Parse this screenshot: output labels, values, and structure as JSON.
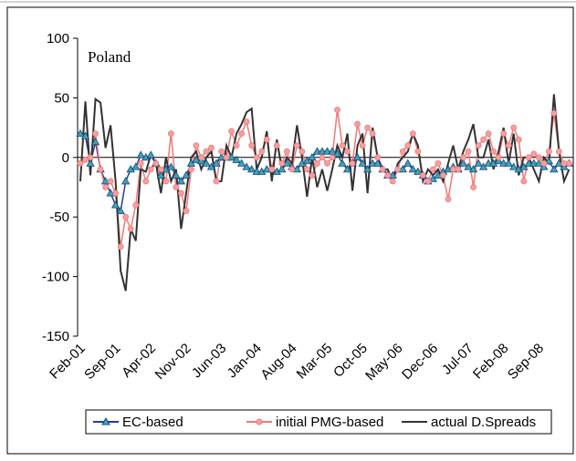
{
  "chart_data": {
    "type": "line",
    "title": "Poland",
    "categories": [
      "Feb-01",
      null,
      null,
      null,
      null,
      null,
      null,
      "Sep-01",
      null,
      null,
      null,
      null,
      null,
      null,
      "Apr-02",
      null,
      null,
      null,
      null,
      null,
      null,
      "Nov-02",
      null,
      null,
      null,
      null,
      null,
      null,
      "Jun-03",
      null,
      null,
      null,
      null,
      null,
      null,
      "Jan-04",
      null,
      null,
      null,
      null,
      null,
      null,
      "Aug-04",
      null,
      null,
      null,
      null,
      null,
      null,
      "Mar-05",
      null,
      null,
      null,
      null,
      null,
      null,
      "Oct-05",
      null,
      null,
      null,
      null,
      null,
      null,
      "May-06",
      null,
      null,
      null,
      null,
      null,
      null,
      "Dec-06",
      null,
      null,
      null,
      null,
      null,
      null,
      "Jul-07",
      null,
      null,
      null,
      null,
      null,
      null,
      "Feb-08",
      null,
      null,
      null,
      null,
      null,
      null,
      "Sep-08",
      null,
      null,
      null,
      null,
      null,
      null
    ],
    "series": [
      {
        "name": "EC-based",
        "color": "#1f3f8f",
        "marker_color": "#3aa8a8",
        "marker": "triangle",
        "values": [
          20,
          18,
          -5,
          13,
          -10,
          -20,
          -30,
          -40,
          -45,
          -20,
          -10,
          -8,
          2,
          0,
          2,
          -5,
          -15,
          -10,
          -8,
          -15,
          -20,
          -15,
          -5,
          -2,
          -3,
          -5,
          -8,
          -5,
          0,
          0,
          0,
          -2,
          -5,
          -8,
          -10,
          -12,
          -12,
          -10,
          -10,
          -12,
          -10,
          -5,
          -8,
          -10,
          -5,
          -3,
          0,
          5,
          5,
          5,
          5,
          3,
          -5,
          -10,
          -5,
          0,
          -5,
          -10,
          -5,
          -5,
          -10,
          -15,
          -15,
          -10,
          -10,
          -5,
          -10,
          -12,
          -15,
          -20,
          -18,
          -15,
          -12,
          -10,
          -8,
          -10,
          -5,
          -8,
          -10,
          -5,
          -8,
          -5,
          -5,
          -3,
          -5,
          -5,
          -8,
          -10,
          -8,
          -5,
          -5,
          -5,
          -8,
          -3,
          -10,
          -5,
          -8,
          -5
        ]
      },
      {
        "name": "initial PMG-based",
        "color": "#f07878",
        "marker_color": "#f4a0a0",
        "marker": "circle",
        "values": [
          -5,
          -2,
          0,
          20,
          -10,
          -25,
          -20,
          -30,
          -75,
          -50,
          -60,
          -40,
          -5,
          -20,
          -10,
          -5,
          -10,
          -20,
          20,
          -25,
          -30,
          -45,
          -10,
          10,
          0,
          5,
          8,
          -20,
          5,
          0,
          22,
          10,
          20,
          30,
          10,
          0,
          5,
          15,
          -10,
          10,
          -5,
          5,
          -10,
          10,
          5,
          -10,
          -15,
          -5,
          0,
          -5,
          0,
          40,
          10,
          5,
          -5,
          28,
          10,
          25,
          20,
          0,
          -10,
          -15,
          -20,
          -10,
          5,
          10,
          20,
          5,
          -15,
          -20,
          -10,
          -5,
          -15,
          -35,
          -10,
          -10,
          0,
          5,
          -25,
          10,
          15,
          20,
          5,
          0,
          20,
          10,
          25,
          15,
          -20,
          0,
          3,
          0,
          -5,
          5,
          37,
          5,
          -5,
          -5
        ]
      },
      {
        "name": "actual D.Spreads",
        "color": "#333333",
        "marker": "none",
        "values": [
          -20,
          47,
          -15,
          49,
          46,
          8,
          27,
          -20,
          -95,
          -112,
          -60,
          -70,
          -10,
          -12,
          2,
          -5,
          -30,
          0,
          -20,
          -10,
          -60,
          -30,
          0,
          5,
          -10,
          0,
          5,
          -20,
          -20,
          10,
          0,
          20,
          28,
          38,
          41,
          -10,
          0,
          22,
          -20,
          15,
          -10,
          0,
          -5,
          27,
          0,
          -33,
          0,
          -25,
          -10,
          -28,
          -10,
          10,
          0,
          20,
          -28,
          10,
          20,
          -30,
          25,
          0,
          -10,
          -10,
          -20,
          -5,
          0,
          5,
          20,
          10,
          -20,
          -10,
          -15,
          -10,
          -20,
          -5,
          10,
          -10,
          5,
          15,
          28,
          0,
          0,
          15,
          -10,
          5,
          25,
          -5,
          20,
          -15,
          0,
          0,
          -10,
          -20,
          0,
          -5,
          53,
          5,
          -20,
          -10
        ]
      }
    ],
    "ylim": [
      -150,
      100
    ],
    "yticks": [
      -150,
      -100,
      -50,
      0,
      50,
      100
    ],
    "grid": false,
    "legend": "bottom"
  }
}
